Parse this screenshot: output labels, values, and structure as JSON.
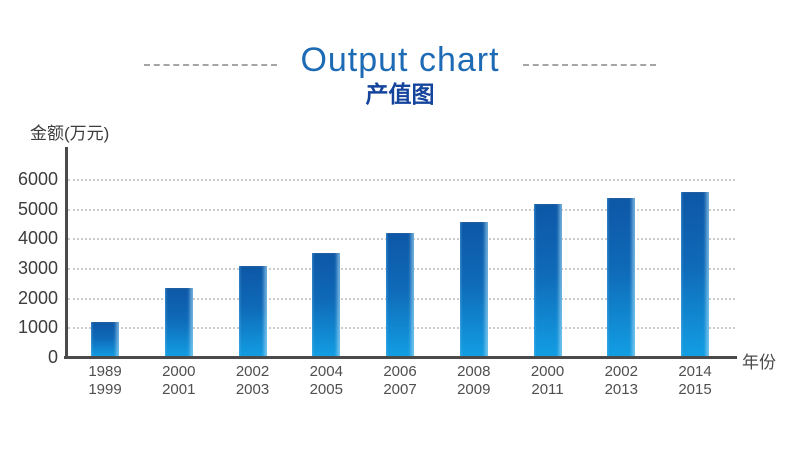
{
  "header": {
    "title": "Output chart",
    "subtitle": "产值图"
  },
  "chart_data": {
    "type": "bar",
    "title": "Output chart",
    "subtitle": "产值图",
    "ylabel": "金额(万元)",
    "xlabel": "年份",
    "categories": [
      "1989\n1999",
      "2000\n2001",
      "2002\n2003",
      "2004\n2005",
      "2006\n2007",
      "2008\n2009",
      "2000\n2011",
      "2002\n2013",
      "2014\n2015"
    ],
    "values": [
      1200,
      2350,
      3100,
      3550,
      4200,
      4600,
      5200,
      5400,
      5600
    ],
    "ylim": [
      0,
      6000
    ],
    "yticks": [
      0,
      1000,
      2000,
      3000,
      4000,
      5000,
      6000
    ],
    "grid": "horizontal dotted",
    "legend": "none",
    "bar_color_top": "#0d57a6",
    "bar_color_bottom": "#129fe4"
  },
  "colors": {
    "title": "#1d6ab5",
    "subtitle": "#14449c",
    "axis": "#4a4a4a",
    "tick_label": "#3d3d3d",
    "category_label": "#4f4f4f",
    "gridline": "#cccccc",
    "dash_line": "#a5a5a5"
  }
}
